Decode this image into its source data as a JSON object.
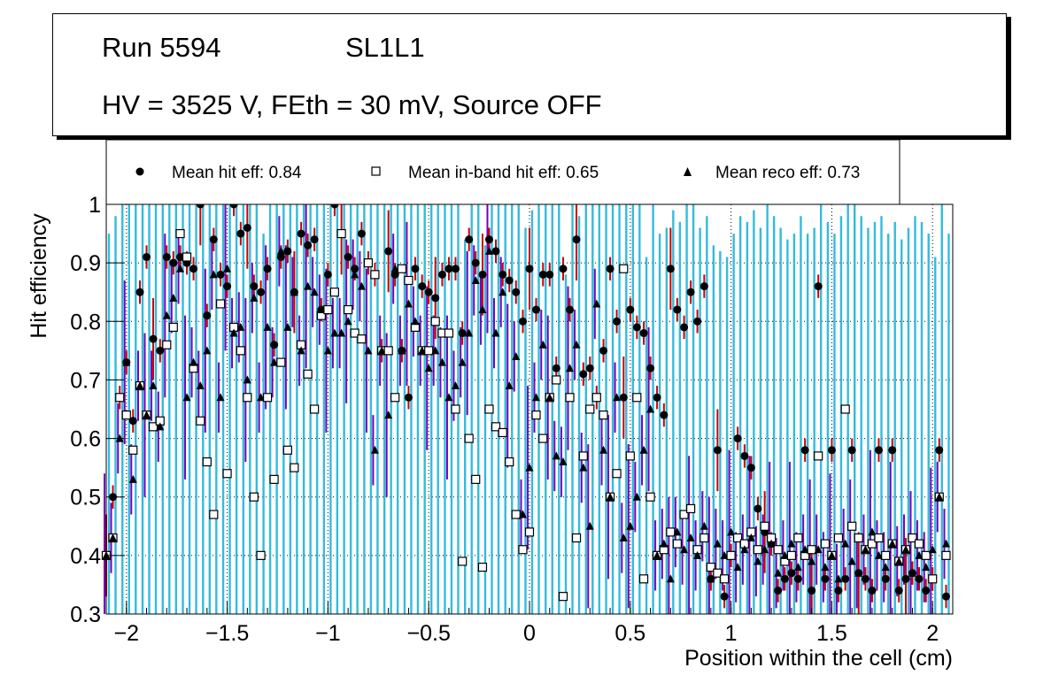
{
  "header": {
    "run": "Run 5594",
    "layer": "SL1L1",
    "conditions": "HV = 3525 V, FEth = 30 mV, Source OFF"
  },
  "legend": {
    "hit": "Mean hit  eff: 0.84",
    "inband": "Mean in-band hit eff: 0.65",
    "reco": "Mean reco eff: 0.73"
  },
  "colors": {
    "err_hit": "#cc0000",
    "err_inband": "#33bbdd",
    "err_reco": "#7700bb",
    "marker": "#000000"
  },
  "chart_data": {
    "type": "scatter",
    "title": "",
    "xlabel": "Position within the cell (cm)",
    "ylabel": "Hit efficiency",
    "xlim": [
      -2.1,
      2.1
    ],
    "ylim": [
      0.3,
      1.0
    ],
    "xticks": [
      -2,
      -1.5,
      -1,
      -0.5,
      0,
      0.5,
      1,
      1.5,
      2
    ],
    "xtick_labels": [
      "−2",
      "−1.5",
      "−1",
      "−0.5",
      "0",
      "0.5",
      "1",
      "1.5",
      "2"
    ],
    "yticks": [
      0.3,
      0.4,
      0.5,
      0.6,
      0.7,
      0.8,
      0.9,
      1.0
    ],
    "ytick_labels": [
      "0.3",
      "0.4",
      "0.5",
      "0.6",
      "0.7",
      "0.8",
      "0.9",
      "1"
    ],
    "grid": true,
    "x": [
      -2.1,
      -2.067,
      -2.033,
      -2.0,
      -1.967,
      -1.933,
      -1.9,
      -1.867,
      -1.833,
      -1.8,
      -1.767,
      -1.733,
      -1.7,
      -1.667,
      -1.633,
      -1.6,
      -1.567,
      -1.533,
      -1.5,
      -1.467,
      -1.433,
      -1.4,
      -1.367,
      -1.333,
      -1.3,
      -1.267,
      -1.233,
      -1.2,
      -1.167,
      -1.133,
      -1.1,
      -1.067,
      -1.033,
      -1.0,
      -0.967,
      -0.933,
      -0.9,
      -0.867,
      -0.833,
      -0.8,
      -0.767,
      -0.733,
      -0.7,
      -0.667,
      -0.633,
      -0.6,
      -0.567,
      -0.533,
      -0.5,
      -0.467,
      -0.433,
      -0.4,
      -0.367,
      -0.333,
      -0.3,
      -0.267,
      -0.233,
      -0.2,
      -0.167,
      -0.133,
      -0.1,
      -0.067,
      -0.033,
      0.0,
      0.033,
      0.067,
      0.1,
      0.133,
      0.167,
      0.2,
      0.233,
      0.267,
      0.3,
      0.333,
      0.367,
      0.4,
      0.433,
      0.467,
      0.5,
      0.533,
      0.567,
      0.6,
      0.633,
      0.667,
      0.7,
      0.733,
      0.767,
      0.8,
      0.833,
      0.867,
      0.9,
      0.933,
      0.967,
      1.0,
      1.033,
      1.067,
      1.1,
      1.133,
      1.167,
      1.2,
      1.233,
      1.267,
      1.3,
      1.333,
      1.367,
      1.4,
      1.433,
      1.467,
      1.5,
      1.533,
      1.567,
      1.6,
      1.633,
      1.667,
      1.7,
      1.733,
      1.767,
      1.8,
      1.833,
      1.867,
      1.9,
      1.933,
      1.967,
      2.0,
      2.033,
      2.067
    ],
    "series": [
      {
        "name": "Mean hit  eff: 0.84",
        "marker": "circle",
        "values": [
          0.4,
          0.5,
          0.67,
          0.73,
          0.63,
          0.85,
          0.91,
          0.77,
          0.75,
          0.91,
          0.9,
          0.91,
          0.9,
          0.89,
          1.0,
          0.81,
          0.94,
          0.88,
          0.86,
          1.0,
          0.95,
          0.96,
          0.86,
          0.85,
          0.89,
          0.76,
          0.91,
          0.92,
          0.85,
          0.95,
          0.93,
          0.94,
          0.82,
          0.88,
          1.0,
          0.95,
          0.91,
          0.89,
          0.95,
          0.9,
          0.88,
          0.75,
          0.92,
          0.88,
          0.75,
          0.67,
          0.89,
          0.86,
          0.85,
          0.84,
          0.88,
          0.89,
          0.89,
          0.78,
          0.94,
          0.9,
          0.88,
          0.94,
          0.92,
          0.88,
          0.87,
          0.85,
          0.8,
          0.89,
          0.82,
          0.88,
          0.88,
          0.72,
          0.89,
          0.82,
          0.94,
          0.71,
          0.72,
          0.67,
          0.75,
          0.89,
          0.8,
          0.67,
          0.82,
          0.79,
          0.78,
          0.72,
          0.67,
          0.64,
          0.89,
          0.82,
          0.79,
          0.85,
          0.8,
          0.86,
          0.36,
          0.58,
          0.33,
          0.4,
          0.6,
          0.57,
          0.55,
          0.48,
          0.44,
          0.42,
          0.34,
          0.36,
          0.37,
          0.36,
          0.58,
          0.34,
          0.86,
          0.36,
          0.58,
          0.34,
          0.36,
          0.58,
          0.37,
          0.36,
          0.34,
          0.58,
          0.36,
          0.58,
          0.34,
          0.36,
          0.37,
          0.36,
          0.34,
          0.36,
          0.58,
          0.33
        ]
      },
      {
        "name": "Mean in-band hit eff: 0.65",
        "marker": "open-square",
        "values": [
          0.4,
          0.43,
          0.67,
          0.64,
          0.58,
          0.69,
          0.64,
          0.62,
          0.63,
          0.76,
          0.79,
          0.95,
          0.91,
          0.72,
          0.63,
          0.56,
          0.47,
          0.83,
          0.54,
          0.79,
          0.75,
          0.67,
          0.5,
          0.4,
          0.67,
          0.53,
          0.73,
          0.58,
          0.55,
          0.76,
          0.71,
          0.65,
          0.81,
          0.82,
          0.85,
          0.95,
          0.82,
          0.78,
          0.77,
          0.9,
          0.88,
          0.75,
          0.75,
          0.67,
          0.89,
          0.87,
          0.79,
          0.75,
          0.75,
          0.8,
          0.78,
          0.78,
          0.65,
          0.39,
          0.6,
          0.53,
          0.38,
          0.65,
          0.62,
          0.61,
          0.56,
          0.47,
          0.41,
          0.44,
          0.64,
          0.6,
          0.67,
          0.7,
          0.33,
          0.67,
          0.43,
          0.57,
          0.65,
          0.67,
          0.64,
          0.5,
          0.54,
          0.89,
          0.57,
          0.67,
          0.36,
          0.5,
          0.4,
          0.41,
          0.44,
          0.42,
          0.47,
          0.48,
          0.41,
          0.43,
          0.38,
          0.37,
          0.36,
          0.4,
          0.43,
          0.42,
          0.44,
          0.41,
          0.45,
          0.43,
          0.41,
          0.39,
          0.4,
          0.43,
          0.4,
          0.41,
          0.57,
          0.42,
          0.4,
          0.43,
          0.65,
          0.45,
          0.43,
          0.41,
          0.42,
          0.43,
          0.4,
          0.42,
          0.39,
          0.41,
          0.43,
          0.42,
          0.4,
          0.36,
          0.5,
          0.4
        ]
      },
      {
        "name": "Mean reco eff: 0.73",
        "marker": "triangle",
        "values": [
          0.4,
          0.43,
          0.6,
          0.73,
          0.53,
          0.69,
          0.64,
          0.69,
          0.62,
          0.81,
          0.84,
          0.89,
          0.67,
          0.73,
          0.69,
          0.75,
          0.88,
          0.67,
          0.89,
          0.78,
          0.79,
          0.7,
          0.84,
          0.67,
          0.79,
          0.73,
          0.92,
          0.79,
          0.85,
          0.75,
          0.86,
          0.85,
          0.82,
          0.75,
          0.78,
          0.78,
          0.8,
          0.88,
          0.86,
          0.75,
          0.58,
          0.75,
          0.64,
          0.89,
          0.75,
          0.83,
          0.8,
          0.75,
          0.72,
          0.75,
          0.73,
          0.67,
          0.69,
          0.73,
          0.78,
          0.87,
          0.82,
          0.92,
          0.78,
          0.85,
          0.69,
          0.74,
          0.47,
          0.55,
          0.67,
          0.76,
          0.67,
          0.57,
          0.56,
          0.72,
          0.76,
          0.55,
          0.45,
          0.83,
          0.58,
          0.5,
          0.67,
          0.43,
          0.45,
          0.5,
          0.58,
          0.65,
          0.4,
          0.42,
          0.36,
          0.44,
          0.41,
          0.43,
          0.4,
          0.45,
          0.36,
          0.42,
          0.4,
          0.44,
          0.38,
          0.41,
          0.43,
          0.39,
          0.41,
          0.42,
          0.37,
          0.4,
          0.42,
          0.38,
          0.41,
          0.39,
          0.41,
          0.38,
          0.4,
          0.36,
          0.42,
          0.39,
          0.37,
          0.41,
          0.44,
          0.4,
          0.38,
          0.42,
          0.39,
          0.41,
          0.37,
          0.4,
          0.38,
          0.41,
          0.5,
          0.42
        ]
      }
    ]
  }
}
